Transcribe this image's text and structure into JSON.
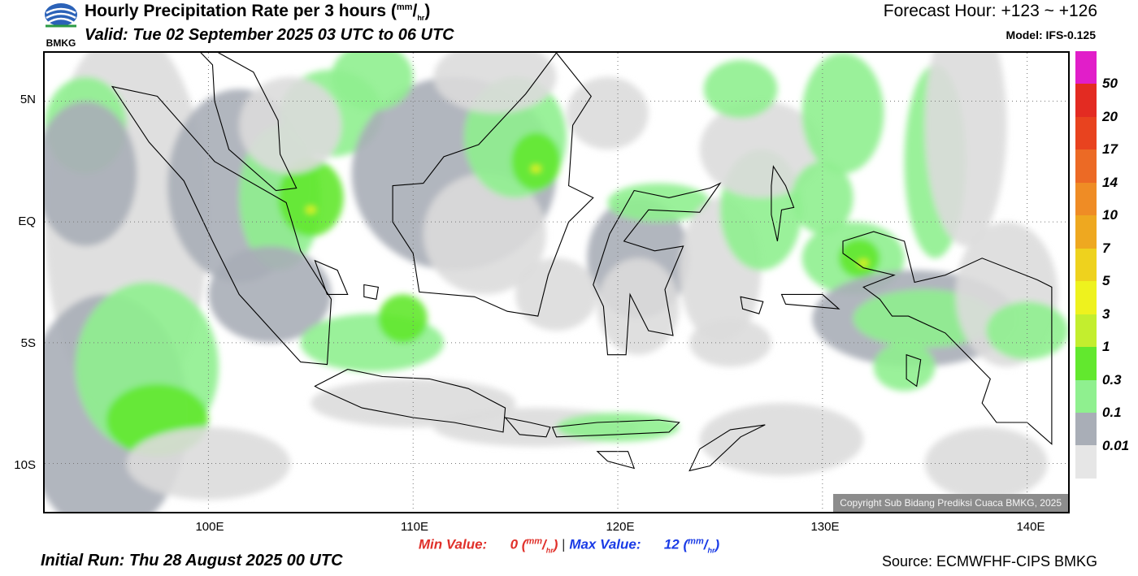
{
  "header": {
    "logo_text": "BMKG",
    "title": "Hourly Precipitation Rate per 3 hours (",
    "title_unit_sup": "mm",
    "title_unit_sub": "hr",
    "title_close": ")",
    "valid": "Valid: Tue 02 September 2025 03 UTC to 06 UTC",
    "forecast_hour": "Forecast Hour: +123 ~ +126",
    "model": "Model: IFS-0.125"
  },
  "map": {
    "copyright": "Copyright Sub Bidang Prediksi Cuaca BMKG, 2025",
    "lat_labels": [
      "5N",
      "EQ",
      "5S",
      "10S"
    ],
    "lon_labels": [
      "100E",
      "110E",
      "120E",
      "130E",
      "140E"
    ],
    "lat_values": [
      5,
      0,
      -5,
      -10
    ],
    "lon_values": [
      100,
      110,
      120,
      130,
      140
    ],
    "lon_range": [
      92,
      142
    ],
    "lat_range": [
      -12,
      7
    ]
  },
  "footer": {
    "min_label": "Min Value:",
    "min_value": "0",
    "max_label": "Max Value:",
    "max_value": "12",
    "unit_sup": "mm",
    "unit_sub": "hr",
    "separator": "|",
    "initial_run": "Initial Run: Thu 28 August 2025 00 UTC",
    "source": "Source: ECMWFHF-CIPS BMKG"
  },
  "legend": {
    "colors": [
      "#e11ec9",
      "#e32b22",
      "#e8431f",
      "#ec6a25",
      "#ef8c25",
      "#eea820",
      "#eed21e",
      "#eef21e",
      "#c3ee2e",
      "#62e82e",
      "#8ff08f",
      "#a9aeb7",
      "#e6e6e6"
    ],
    "labels": [
      "50",
      "20",
      "17",
      "14",
      "10",
      "7",
      "5",
      "3",
      "1",
      "0.3",
      "0.1",
      "0.01"
    ]
  },
  "colors": {
    "rain_light": "#dcdcdc",
    "rain_gray": "#a9aeb7",
    "rain_lightgreen": "#8ff08f",
    "rain_green": "#62e82e",
    "rain_yellow": "#eef21e"
  }
}
